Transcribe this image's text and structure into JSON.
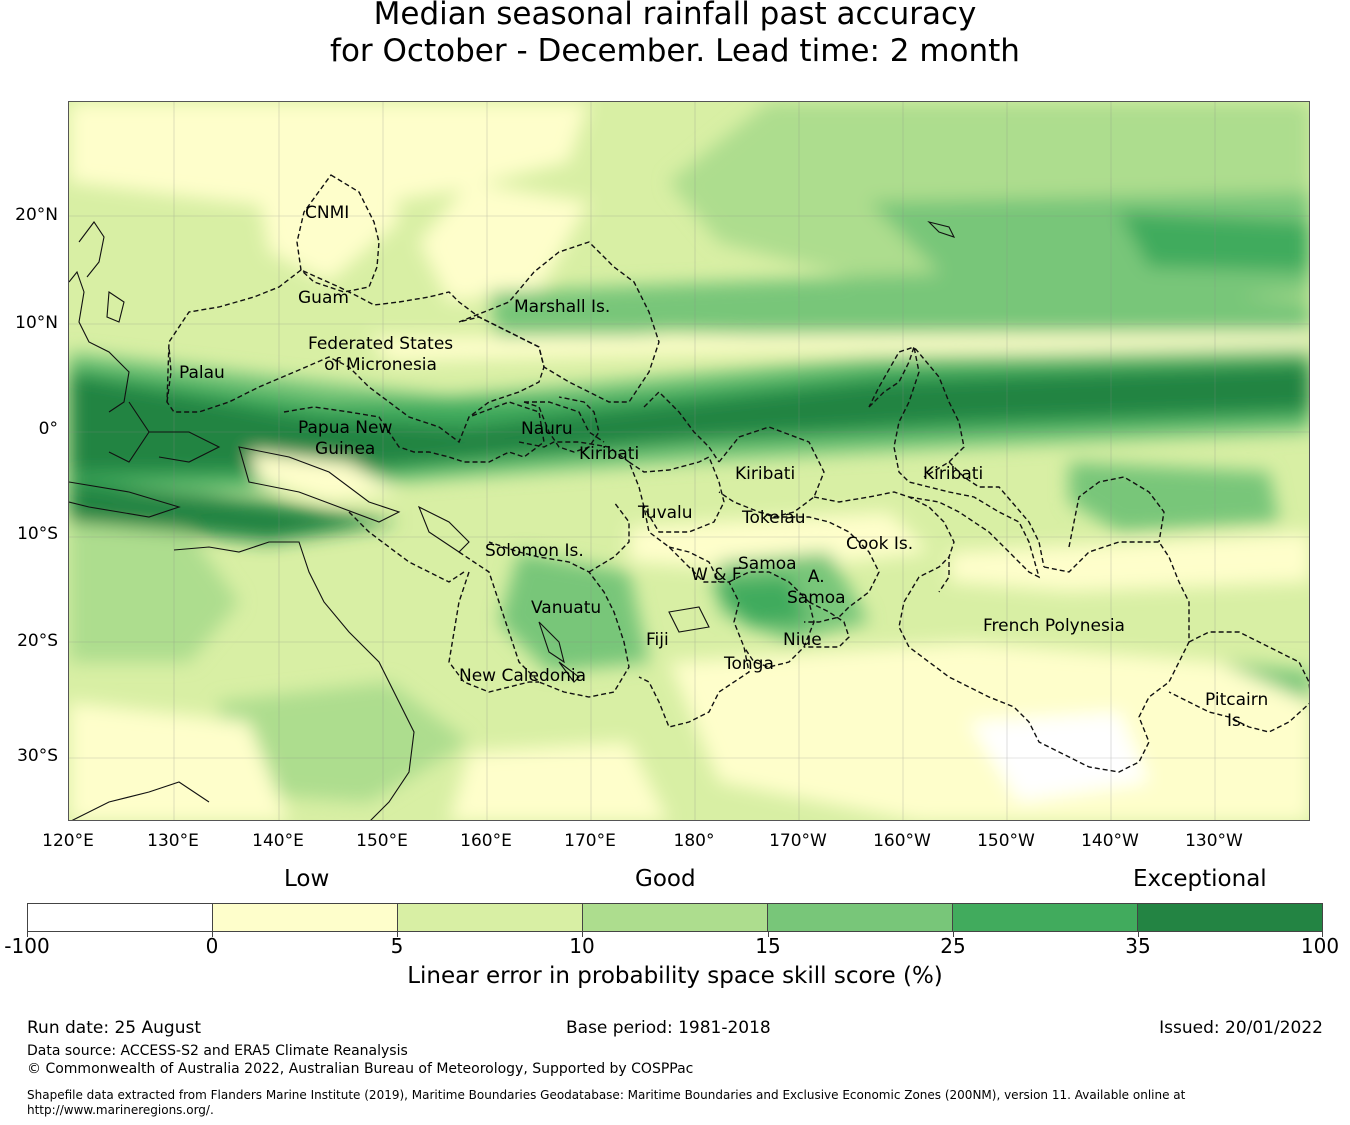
{
  "title": {
    "line1": "Median seasonal rainfall past accuracy",
    "line2": "for October - December. Lead time: 2 month"
  },
  "map": {
    "lat_labels": [
      "20°N",
      "10°N",
      "0°",
      "10°S",
      "20°S",
      "30°S"
    ],
    "lon_labels": [
      "120°E",
      "130°E",
      "140°E",
      "150°E",
      "160°E",
      "170°E",
      "180°",
      "170°W",
      "160°W",
      "150°W",
      "140°W",
      "130°W"
    ],
    "regions": {
      "cnmi": "CNMI",
      "guam": "Guam",
      "fsm": "Federated States\nof Micronesia",
      "palau": "Palau",
      "marshall": "Marshall Is.",
      "png": "Papua New\nGuinea",
      "nauru": "Nauru",
      "kiribati_w": "Kiribati",
      "kiribati_c": "Kiribati",
      "kiribati_e": "Kiribati",
      "tuvalu": "Tuvalu",
      "tokelau": "Tokelau",
      "solomon": "Solomon Is.",
      "samoa": "Samoa",
      "wf": "W & F",
      "asamoa": "A.\nSamoa",
      "cook": "Cook Is.",
      "vanuatu": "Vanuatu",
      "fiji": "Fiji",
      "niue": "Niue",
      "tonga": "Tonga",
      "newcal": "New Caledonia",
      "frenchpoly": "French Polynesia",
      "pitcairn": "Pitcairn\nIs."
    }
  },
  "legend": {
    "categories": {
      "low": "Low",
      "good": "Good",
      "exceptional": "Exceptional"
    },
    "colors": [
      "#ffffff",
      "#fefecb",
      "#d8efa4",
      "#addd8e",
      "#78c679",
      "#41ab5d",
      "#238443"
    ],
    "tick_values": [
      "-100",
      "0",
      "5",
      "10",
      "15",
      "25",
      "35",
      "100"
    ],
    "title": "Linear error in probability space skill score (%)"
  },
  "footer": {
    "run_date": "Run date: 25 August",
    "base_period": "Base period: 1981-2018",
    "issued": "Issued: 20/01/2022",
    "data_source": "Data source: ACCESS-S2 and ERA5 Climate Reanalysis",
    "copyright": "© Commonwealth of Australia 2022, Australian Bureau of Meteorology, Supported by COSPPac",
    "shapefile_line1": "Shapefile data extracted from Flanders Marine Institute (2019), Maritime Boundaries Geodatabase: Maritime Boundaries and Exclusive Economic Zones (200NM), version 11. Available online at",
    "shapefile_line2": "http://www.marineregions.org/."
  }
}
